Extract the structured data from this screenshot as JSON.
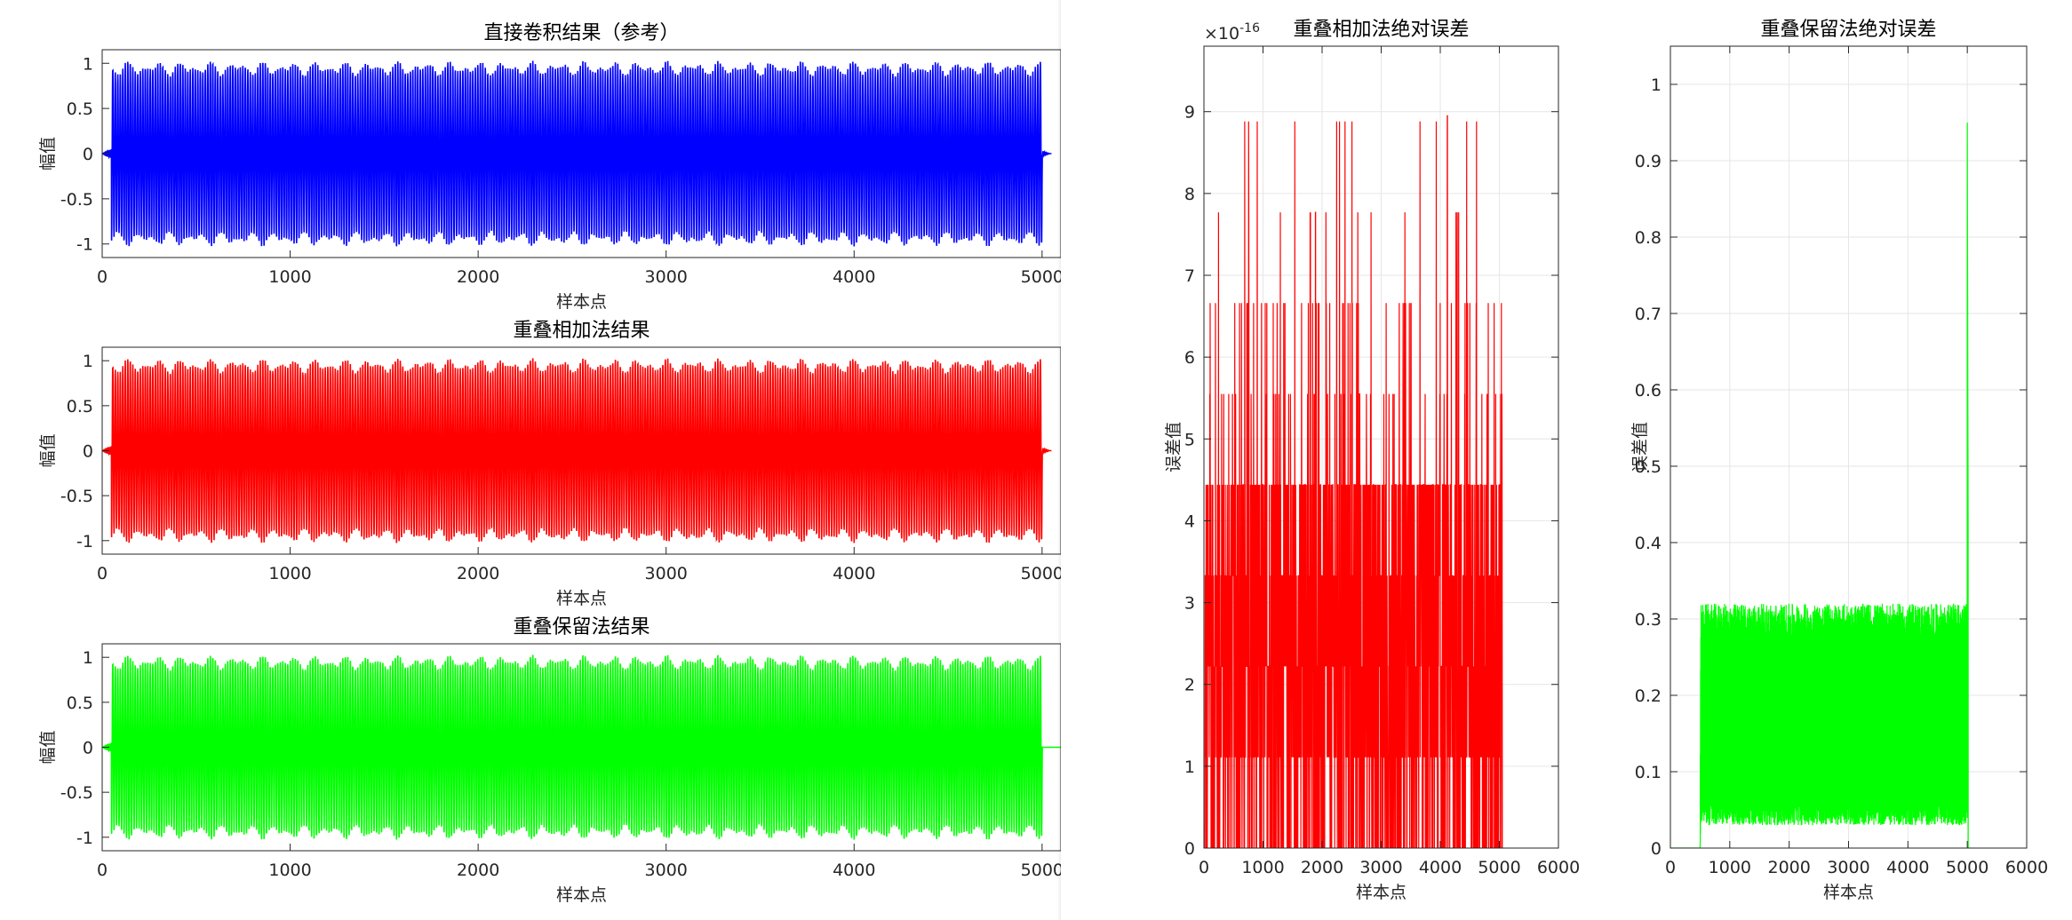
{
  "chart_data": [
    {
      "type": "line",
      "title": "直接卷积结果（参考）",
      "xlabel": "样本点",
      "ylabel": "幅值",
      "xlim": [
        0,
        5100
      ],
      "ylim": [
        -1.15,
        1.15
      ],
      "xticks": [
        0,
        1000,
        2000,
        3000,
        4000,
        5000
      ],
      "yticks": [
        -1,
        -0.5,
        0,
        0.5,
        1
      ],
      "grid": false,
      "color": "#0000ff",
      "series": [
        {
          "x_range": [
            0,
            5050
          ],
          "signal": "oscillation",
          "amplitude_approx": 1.0,
          "cycles_approx": 380,
          "active_range": [
            50,
            5000
          ]
        }
      ]
    },
    {
      "type": "line",
      "title": "重叠相加法结果",
      "xlabel": "样本点",
      "ylabel": "幅值",
      "xlim": [
        0,
        5100
      ],
      "ylim": [
        -1.15,
        1.15
      ],
      "xticks": [
        0,
        1000,
        2000,
        3000,
        4000,
        5000
      ],
      "yticks": [
        -1,
        -0.5,
        0,
        0.5,
        1
      ],
      "grid": false,
      "color": "#ff0000",
      "series": [
        {
          "x_range": [
            0,
            5050
          ],
          "signal": "oscillation",
          "amplitude_approx": 1.0,
          "cycles_approx": 380,
          "active_range": [
            50,
            5000
          ]
        }
      ]
    },
    {
      "type": "line",
      "title": "重叠保留法结果",
      "xlabel": "样本点",
      "ylabel": "幅值",
      "xlim": [
        0,
        5100
      ],
      "ylim": [
        -1.15,
        1.15
      ],
      "xticks": [
        0,
        1000,
        2000,
        3000,
        4000,
        5000
      ],
      "yticks": [
        -1,
        -0.5,
        0,
        0.5,
        1
      ],
      "grid": false,
      "color": "#00ff00",
      "series": [
        {
          "x_range": [
            0,
            5100
          ],
          "signal": "oscillation",
          "amplitude_approx": 1.0,
          "cycles_approx": 380,
          "active_range": [
            50,
            5000
          ]
        }
      ]
    },
    {
      "type": "line",
      "title": "重叠相加法绝对误差",
      "xlabel": "样本点",
      "ylabel": "误差值",
      "exponent_label": "×10",
      "exponent": "-16",
      "xlim": [
        0,
        6000
      ],
      "ylim": [
        0,
        9.8
      ],
      "xticks": [
        0,
        1000,
        2000,
        3000,
        4000,
        5000,
        6000
      ],
      "yticks": [
        0,
        1,
        2,
        3,
        4,
        5,
        6,
        7,
        8,
        9
      ],
      "grid": true,
      "color": "#ff0000",
      "series": [
        {
          "x_range": [
            0,
            5050
          ],
          "levels": [
            0,
            1.11,
            2.22,
            3.33,
            4.44,
            5.55,
            6.66,
            7.77,
            8.88
          ],
          "typical_range": [
            0,
            4.44
          ],
          "peak": 8.95
        }
      ]
    },
    {
      "type": "line",
      "title": "重叠保留法绝对误差",
      "xlabel": "样本点",
      "ylabel": "误差值",
      "xlim": [
        0,
        6000
      ],
      "ylim": [
        0,
        1.05
      ],
      "xticks": [
        0,
        1000,
        2000,
        3000,
        4000,
        5000,
        6000
      ],
      "yticks": [
        0,
        0.1,
        0.2,
        0.3,
        0.4,
        0.5,
        0.6,
        0.7,
        0.8,
        0.9,
        1
      ],
      "grid": true,
      "color": "#00ff00",
      "series": [
        {
          "x_range": [
            0,
            5050
          ],
          "zero_until": 500,
          "band": [
            0.04,
            0.31
          ],
          "spike_x": 5000,
          "spike_y": 0.95
        }
      ]
    }
  ]
}
